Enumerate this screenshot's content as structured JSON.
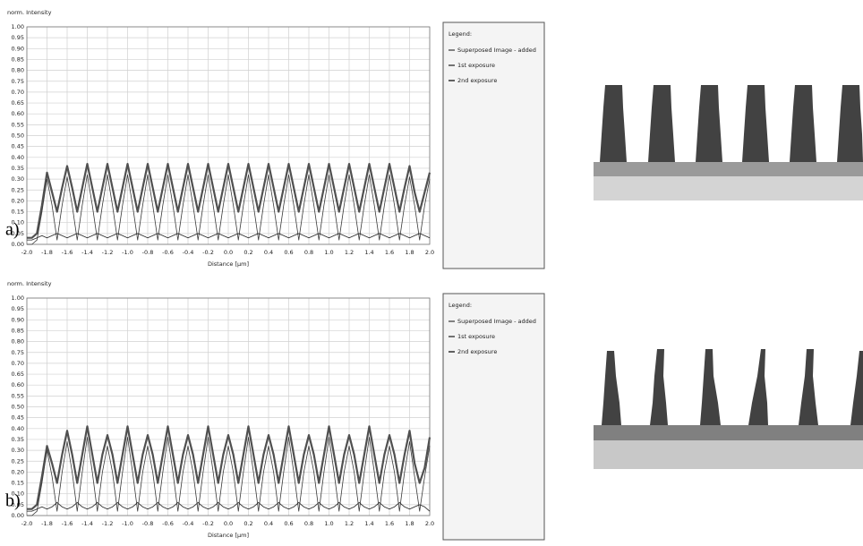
{
  "chart_data": [
    {
      "type": "line",
      "panel_label": "a)",
      "y_label": "norm. Intensity",
      "x_label": "Distance [µm]",
      "legend_title": "Legend:",
      "grid": true,
      "xlim": [
        -2.0,
        2.0
      ],
      "ylim": [
        0,
        1
      ],
      "xticks": [
        {
          "value": -2.0,
          "label": "-2.0"
        },
        -1.8,
        -1.6,
        -1.4,
        -1.2,
        {
          "value": -1.0,
          "label": "-1.0"
        },
        -0.8,
        -0.6,
        -0.4,
        -0.2,
        {
          "value": 0,
          "label": "0.0"
        },
        0.2,
        0.4,
        0.6,
        0.8,
        {
          "value": 1.0,
          "label": "1.0"
        },
        1.2,
        1.4,
        1.6,
        1.8,
        {
          "value": 2.0,
          "label": "2.0"
        }
      ],
      "yticks": [
        {
          "value": 0,
          "label": "0.00"
        },
        0.05,
        {
          "value": 0.1,
          "label": "0.10"
        },
        0.15,
        {
          "value": 0.2,
          "label": "0.20"
        },
        0.25,
        {
          "value": 0.3,
          "label": "0.30"
        },
        0.35,
        {
          "value": 0.4,
          "label": "0.40"
        },
        0.45,
        {
          "value": 0.5,
          "label": "0.50"
        },
        0.55,
        {
          "value": 0.6,
          "label": "0.60"
        },
        0.65,
        {
          "value": 0.7,
          "label": "0.70"
        },
        0.75,
        {
          "value": 0.8,
          "label": "0.80"
        },
        0.85,
        {
          "value": 0.9,
          "label": "0.90"
        },
        0.95,
        {
          "value": 1.0,
          "label": "1.00"
        }
      ],
      "x": [
        -2.0,
        -1.95,
        -1.9,
        -1.85,
        -1.8,
        -1.75,
        -1.7,
        -1.65,
        -1.6,
        -1.55,
        -1.5,
        -1.45,
        -1.4,
        -1.35,
        -1.3,
        -1.25,
        -1.2,
        -1.15,
        -1.1,
        -1.05,
        -1.0,
        -0.95,
        -0.9,
        -0.85,
        -0.8,
        -0.75,
        -0.7,
        -0.65,
        -0.6,
        -0.55,
        -0.5,
        -0.45,
        -0.4,
        -0.35,
        -0.3,
        -0.25,
        -0.2,
        -0.15,
        -0.1,
        -0.05,
        0,
        0.05,
        0.1,
        0.15,
        0.2,
        0.25,
        0.3,
        0.35,
        0.4,
        0.45,
        0.5,
        0.55,
        0.6,
        0.65,
        0.7,
        0.75,
        0.8,
        0.85,
        0.9,
        0.95,
        1.0,
        1.05,
        1.1,
        1.15,
        1.2,
        1.25,
        1.3,
        1.35,
        1.4,
        1.45,
        1.5,
        1.55,
        1.6,
        1.65,
        1.7,
        1.75,
        1.8,
        1.85,
        1.9,
        1.95,
        2.0
      ],
      "series": [
        {
          "name": "Superposed Image - added",
          "color": "#505050",
          "values": [
            0.03,
            0.03,
            0.05,
            0.18,
            0.33,
            0.24,
            0.15,
            0.26,
            0.36,
            0.26,
            0.15,
            0.26,
            0.37,
            0.26,
            0.15,
            0.26,
            0.37,
            0.26,
            0.15,
            0.26,
            0.37,
            0.26,
            0.15,
            0.26,
            0.37,
            0.26,
            0.15,
            0.26,
            0.37,
            0.26,
            0.15,
            0.26,
            0.37,
            0.26,
            0.15,
            0.26,
            0.37,
            0.26,
            0.15,
            0.26,
            0.37,
            0.26,
            0.15,
            0.26,
            0.37,
            0.26,
            0.15,
            0.26,
            0.37,
            0.26,
            0.15,
            0.26,
            0.37,
            0.26,
            0.15,
            0.26,
            0.37,
            0.26,
            0.15,
            0.26,
            0.37,
            0.26,
            0.15,
            0.26,
            0.37,
            0.26,
            0.15,
            0.26,
            0.37,
            0.26,
            0.15,
            0.26,
            0.37,
            0.26,
            0.15,
            0.26,
            0.36,
            0.24,
            0.15,
            0.24,
            0.33
          ]
        },
        {
          "name": "1st exposure",
          "color": "#3a3a3a",
          "values": [
            0.0,
            0.0,
            0.02,
            0.15,
            0.3,
            0.18,
            0.02,
            0.18,
            0.31,
            0.18,
            0.02,
            0.18,
            0.32,
            0.18,
            0.02,
            0.18,
            0.32,
            0.18,
            0.02,
            0.18,
            0.32,
            0.18,
            0.02,
            0.18,
            0.32,
            0.18,
            0.02,
            0.18,
            0.32,
            0.18,
            0.02,
            0.18,
            0.32,
            0.18,
            0.02,
            0.18,
            0.32,
            0.18,
            0.02,
            0.18,
            0.32,
            0.18,
            0.02,
            0.18,
            0.32,
            0.18,
            0.02,
            0.18,
            0.32,
            0.18,
            0.02,
            0.18,
            0.32,
            0.18,
            0.02,
            0.18,
            0.32,
            0.18,
            0.02,
            0.18,
            0.32,
            0.18,
            0.02,
            0.18,
            0.32,
            0.18,
            0.02,
            0.18,
            0.32,
            0.18,
            0.02,
            0.18,
            0.32,
            0.18,
            0.02,
            0.18,
            0.31,
            0.18,
            0.02,
            0.18,
            0.3
          ]
        },
        {
          "name": "2nd exposure",
          "color": "#222222",
          "values": [
            0.02,
            0.02,
            0.03,
            0.04,
            0.03,
            0.04,
            0.05,
            0.04,
            0.03,
            0.04,
            0.05,
            0.04,
            0.03,
            0.04,
            0.05,
            0.04,
            0.03,
            0.04,
            0.05,
            0.04,
            0.03,
            0.04,
            0.05,
            0.04,
            0.03,
            0.04,
            0.05,
            0.04,
            0.03,
            0.04,
            0.05,
            0.04,
            0.03,
            0.04,
            0.05,
            0.04,
            0.03,
            0.04,
            0.05,
            0.04,
            0.03,
            0.04,
            0.05,
            0.04,
            0.03,
            0.04,
            0.05,
            0.04,
            0.03,
            0.04,
            0.05,
            0.04,
            0.03,
            0.04,
            0.05,
            0.04,
            0.03,
            0.04,
            0.05,
            0.04,
            0.03,
            0.04,
            0.05,
            0.04,
            0.03,
            0.04,
            0.05,
            0.04,
            0.03,
            0.04,
            0.05,
            0.04,
            0.03,
            0.04,
            0.05,
            0.04,
            0.03,
            0.04,
            0.05,
            0.04,
            0.03
          ]
        }
      ]
    },
    {
      "type": "line",
      "panel_label": "b)",
      "y_label": "norm. Intensity",
      "x_label": "Distance [µm]",
      "legend_title": "Legend:",
      "grid": true,
      "xlim": [
        -2.0,
        2.0
      ],
      "ylim": [
        0,
        1
      ],
      "xticks": [
        {
          "value": -2.0,
          "label": "-2.0"
        },
        -1.8,
        -1.6,
        -1.4,
        -1.2,
        {
          "value": -1.0,
          "label": "-1.0"
        },
        -0.8,
        -0.6,
        -0.4,
        -0.2,
        {
          "value": 0,
          "label": "0.0"
        },
        0.2,
        0.4,
        0.6,
        0.8,
        {
          "value": 1.0,
          "label": "1.0"
        },
        1.2,
        1.4,
        1.6,
        1.8,
        {
          "value": 2.0,
          "label": "2.0"
        }
      ],
      "yticks": [
        {
          "value": 0,
          "label": "0.00"
        },
        0.05,
        {
          "value": 0.1,
          "label": "0.10"
        },
        0.15,
        {
          "value": 0.2,
          "label": "0.20"
        },
        0.25,
        {
          "value": 0.3,
          "label": "0.30"
        },
        0.35,
        {
          "value": 0.4,
          "label": "0.40"
        },
        0.45,
        {
          "value": 0.5,
          "label": "0.50"
        },
        0.55,
        {
          "value": 0.6,
          "label": "0.60"
        },
        0.65,
        {
          "value": 0.7,
          "label": "0.70"
        },
        0.75,
        {
          "value": 0.8,
          "label": "0.80"
        },
        0.85,
        {
          "value": 0.9,
          "label": "0.90"
        },
        0.95,
        {
          "value": 1.0,
          "label": "1.00"
        }
      ],
      "x": [
        -2.0,
        -1.95,
        -1.9,
        -1.85,
        -1.8,
        -1.75,
        -1.7,
        -1.65,
        -1.6,
        -1.55,
        -1.5,
        -1.45,
        -1.4,
        -1.35,
        -1.3,
        -1.25,
        -1.2,
        -1.15,
        -1.1,
        -1.05,
        -1.0,
        -0.95,
        -0.9,
        -0.85,
        -0.8,
        -0.75,
        -0.7,
        -0.65,
        -0.6,
        -0.55,
        -0.5,
        -0.45,
        -0.4,
        -0.35,
        -0.3,
        -0.25,
        -0.2,
        -0.15,
        -0.1,
        -0.05,
        0,
        0.05,
        0.1,
        0.15,
        0.2,
        0.25,
        0.3,
        0.35,
        0.4,
        0.45,
        0.5,
        0.55,
        0.6,
        0.65,
        0.7,
        0.75,
        0.8,
        0.85,
        0.9,
        0.95,
        1.0,
        1.05,
        1.1,
        1.15,
        1.2,
        1.25,
        1.3,
        1.35,
        1.4,
        1.45,
        1.5,
        1.55,
        1.6,
        1.65,
        1.7,
        1.75,
        1.8,
        1.85,
        1.9,
        1.95,
        2.0
      ],
      "series": [
        {
          "name": "Superposed Image - added",
          "color": "#505050",
          "values": [
            0.03,
            0.03,
            0.05,
            0.18,
            0.32,
            0.24,
            0.15,
            0.28,
            0.39,
            0.28,
            0.15,
            0.28,
            0.41,
            0.28,
            0.15,
            0.28,
            0.37,
            0.28,
            0.15,
            0.28,
            0.41,
            0.28,
            0.15,
            0.28,
            0.37,
            0.28,
            0.15,
            0.28,
            0.41,
            0.28,
            0.15,
            0.28,
            0.37,
            0.28,
            0.15,
            0.28,
            0.41,
            0.28,
            0.15,
            0.28,
            0.37,
            0.28,
            0.15,
            0.28,
            0.41,
            0.28,
            0.15,
            0.28,
            0.37,
            0.28,
            0.15,
            0.28,
            0.41,
            0.28,
            0.15,
            0.28,
            0.37,
            0.28,
            0.15,
            0.28,
            0.41,
            0.28,
            0.15,
            0.28,
            0.37,
            0.28,
            0.15,
            0.28,
            0.41,
            0.28,
            0.15,
            0.28,
            0.37,
            0.28,
            0.15,
            0.28,
            0.39,
            0.24,
            0.15,
            0.22,
            0.36
          ]
        },
        {
          "name": "1st exposure",
          "color": "#3a3a3a",
          "values": [
            0.0,
            0.0,
            0.02,
            0.15,
            0.3,
            0.18,
            0.02,
            0.2,
            0.34,
            0.2,
            0.02,
            0.2,
            0.36,
            0.2,
            0.02,
            0.2,
            0.32,
            0.2,
            0.02,
            0.2,
            0.36,
            0.2,
            0.02,
            0.2,
            0.32,
            0.2,
            0.02,
            0.2,
            0.36,
            0.2,
            0.02,
            0.2,
            0.32,
            0.2,
            0.02,
            0.2,
            0.36,
            0.2,
            0.02,
            0.2,
            0.32,
            0.2,
            0.02,
            0.2,
            0.36,
            0.2,
            0.02,
            0.2,
            0.32,
            0.2,
            0.02,
            0.2,
            0.36,
            0.2,
            0.02,
            0.2,
            0.32,
            0.2,
            0.02,
            0.2,
            0.36,
            0.2,
            0.02,
            0.2,
            0.32,
            0.2,
            0.02,
            0.2,
            0.36,
            0.2,
            0.02,
            0.2,
            0.32,
            0.2,
            0.02,
            0.2,
            0.34,
            0.18,
            0.02,
            0.18,
            0.32
          ]
        },
        {
          "name": "2nd exposure",
          "color": "#222222",
          "values": [
            0.02,
            0.02,
            0.03,
            0.04,
            0.03,
            0.04,
            0.06,
            0.04,
            0.03,
            0.04,
            0.06,
            0.04,
            0.03,
            0.04,
            0.06,
            0.04,
            0.03,
            0.04,
            0.06,
            0.04,
            0.03,
            0.04,
            0.06,
            0.04,
            0.03,
            0.04,
            0.06,
            0.04,
            0.03,
            0.04,
            0.06,
            0.04,
            0.03,
            0.04,
            0.06,
            0.04,
            0.03,
            0.04,
            0.06,
            0.04,
            0.03,
            0.04,
            0.06,
            0.04,
            0.03,
            0.04,
            0.06,
            0.04,
            0.03,
            0.04,
            0.06,
            0.04,
            0.03,
            0.04,
            0.06,
            0.04,
            0.03,
            0.04,
            0.06,
            0.04,
            0.03,
            0.04,
            0.06,
            0.04,
            0.03,
            0.04,
            0.06,
            0.04,
            0.03,
            0.04,
            0.06,
            0.04,
            0.03,
            0.04,
            0.06,
            0.04,
            0.03,
            0.04,
            0.05,
            0.04,
            0.02
          ]
        }
      ]
    }
  ]
}
